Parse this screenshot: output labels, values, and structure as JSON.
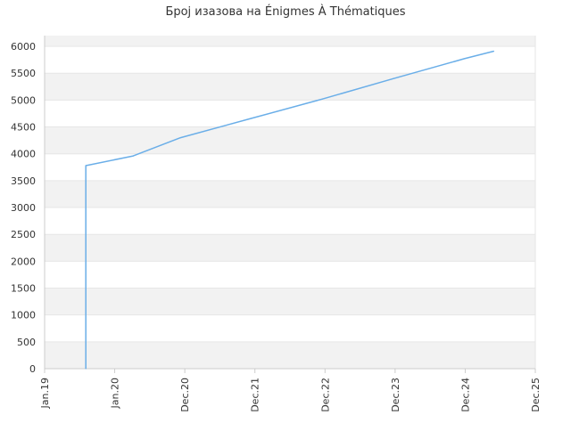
{
  "chart_data": {
    "type": "line",
    "title": "Број изазова на Énigmes À Thématiques",
    "xlabel": "",
    "ylabel": "",
    "x_tick_labels": [
      "Jan.19",
      "Jan.20",
      "Dec.20",
      "Dec.21",
      "Dec.22",
      "Dec.23",
      "Dec.24",
      "Dec.25"
    ],
    "y_ticks": [
      0,
      500,
      1000,
      1500,
      2000,
      2500,
      3000,
      3500,
      4000,
      4500,
      5000,
      5500,
      6000
    ],
    "ylim": [
      0,
      6200
    ],
    "xlim": [
      "2019-01-01",
      "2025-12-01"
    ],
    "grid": "horizontal alternating bands",
    "legend": "none",
    "series": [
      {
        "color": "#6aaee8",
        "points": [
          {
            "x": "2019-08-01",
            "y": 0
          },
          {
            "x": "2019-08-01",
            "y": 3780
          },
          {
            "x": "2020-04-01",
            "y": 3960
          },
          {
            "x": "2020-12-01",
            "y": 4300
          },
          {
            "x": "2021-12-01",
            "y": 4660
          },
          {
            "x": "2022-11-01",
            "y": 4990
          },
          {
            "x": "2022-12-01",
            "y": 5020
          },
          {
            "x": "2023-12-01",
            "y": 5400
          },
          {
            "x": "2024-12-01",
            "y": 5770
          },
          {
            "x": "2025-05-01",
            "y": 5910
          }
        ]
      }
    ],
    "colors": {
      "band": "#f2f2f2",
      "grid": "#e6e6e6",
      "axis": "#cccccc",
      "tick_text": "#333333"
    }
  }
}
